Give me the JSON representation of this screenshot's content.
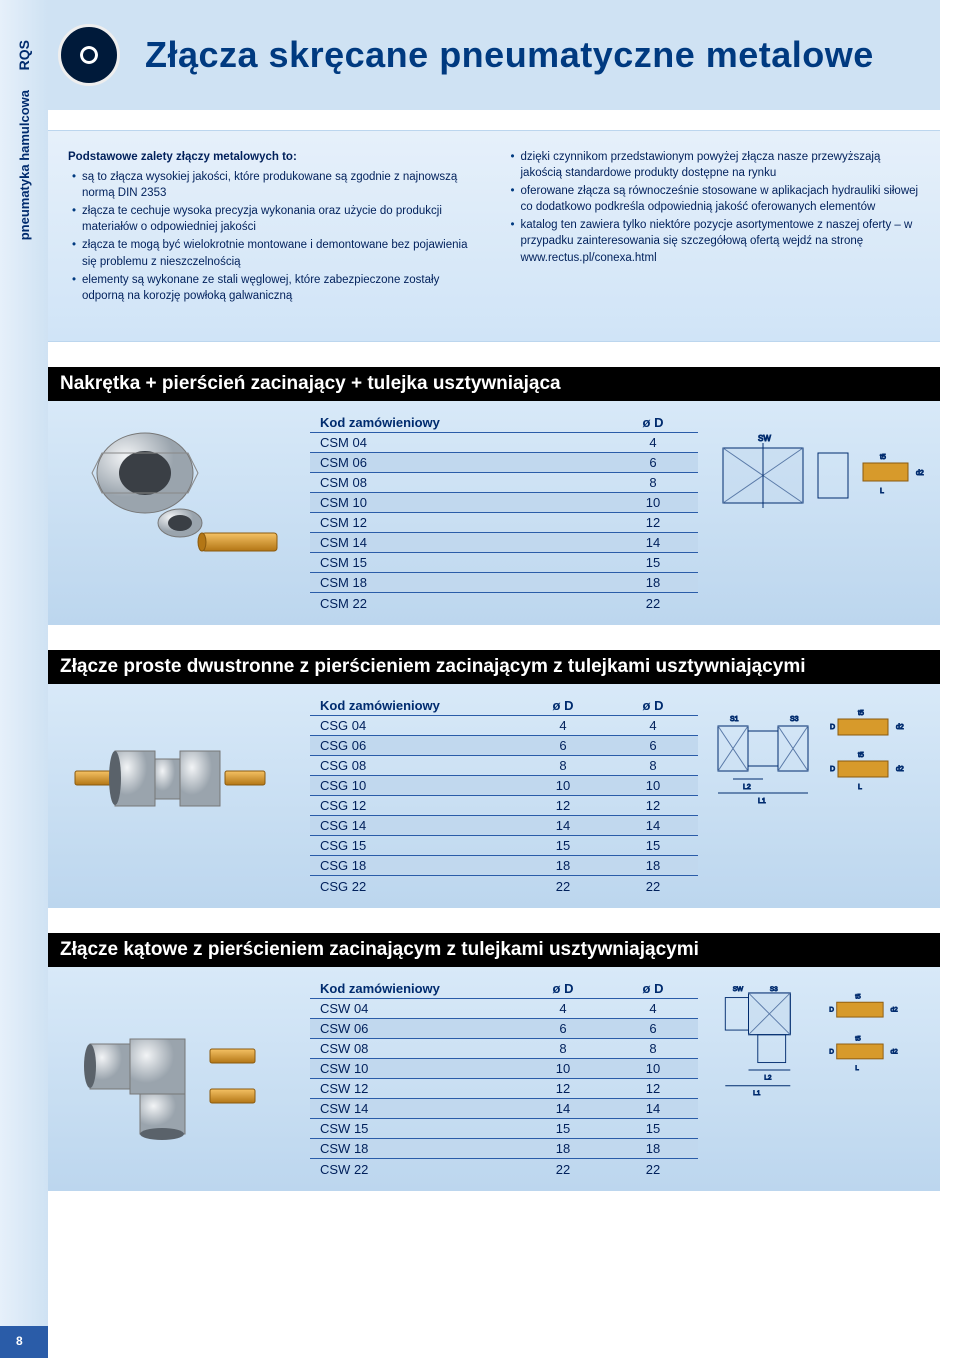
{
  "rail": {
    "code": "RQS",
    "category": "pneumatyka hamulcowa"
  },
  "header": {
    "title": "Złącza skręcane pneumatyczne metalowe"
  },
  "intro": {
    "left_title": "Podstawowe zalety złączy metalowych to:",
    "left_items": [
      "są to złącza wysokiej jakości, które produkowane są zgodnie z najnowszą normą DIN 2353",
      "złącza te cechuje wysoka precyzja wykonania oraz użycie do produkcji materiałów o odpowiedniej jakości",
      "złącza te mogą być wielokrotnie montowane i demontowane bez pojawienia się problemu z nieszczelnością",
      "elementy są wykonane ze stali węglowej, które zabezpieczone zostały odporną na korozję powłoką galwaniczną"
    ],
    "right_items": [
      "dzięki czynnikom przedstawionym powyżej złącza nasze przewyższają jakością standardowe produkty dostępne na rynku",
      "oferowane złącza są równocześnie stosowane w aplikacjach hydrauliki siłowej co dodatkowo podkreśla odpowiednią jakość oferowanych elementów",
      "katalog ten zawiera tylko niektóre pozycje asortymentowe z naszej oferty – w przypadku zainteresowania się szczegółową ofertą wejdź na stronę www.rectus.pl/conexa.html"
    ]
  },
  "sections": {
    "s1": {
      "title": "Nakrętka + pierścień zacinający + tulejka usztywniająca",
      "columns": [
        "Kod zamówieniowy",
        "ø D"
      ],
      "rows": [
        [
          "CSM 04",
          "4"
        ],
        [
          "CSM 06",
          "6"
        ],
        [
          "CSM 08",
          "8"
        ],
        [
          "CSM 10",
          "10"
        ],
        [
          "CSM 12",
          "12"
        ],
        [
          "CSM 14",
          "14"
        ],
        [
          "CSM 15",
          "15"
        ],
        [
          "CSM 18",
          "18"
        ],
        [
          "CSM 22",
          "22"
        ]
      ]
    },
    "s2": {
      "title": "Złącze proste dwustronne z pierścieniem zacinającym z tulejkami usztywniającymi",
      "columns": [
        "Kod zamówieniowy",
        "ø D",
        "ø D"
      ],
      "rows": [
        [
          "CSG 04",
          "4",
          "4"
        ],
        [
          "CSG 06",
          "6",
          "6"
        ],
        [
          "CSG 08",
          "8",
          "8"
        ],
        [
          "CSG 10",
          "10",
          "10"
        ],
        [
          "CSG 12",
          "12",
          "12"
        ],
        [
          "CSG 14",
          "14",
          "14"
        ],
        [
          "CSG 15",
          "15",
          "15"
        ],
        [
          "CSG 18",
          "18",
          "18"
        ],
        [
          "CSG 22",
          "22",
          "22"
        ]
      ]
    },
    "s3": {
      "title": "Złącze kątowe z pierścieniem zacinającym z tulejkami usztywniającymi",
      "columns": [
        "Kod zamówieniowy",
        "ø D",
        "ø D"
      ],
      "rows": [
        [
          "CSW 04",
          "4",
          "4"
        ],
        [
          "CSW 06",
          "6",
          "6"
        ],
        [
          "CSW 08",
          "8",
          "8"
        ],
        [
          "CSW 10",
          "10",
          "10"
        ],
        [
          "CSW 12",
          "12",
          "12"
        ],
        [
          "CSW 14",
          "14",
          "14"
        ],
        [
          "CSW 15",
          "15",
          "15"
        ],
        [
          "CSW 18",
          "18",
          "18"
        ],
        [
          "CSW 22",
          "22",
          "22"
        ]
      ]
    }
  },
  "colors": {
    "brand_blue": "#003a80",
    "text_blue": "#002b6e",
    "row_alt": "#c1d8ee",
    "panel_grad_from": "#d8e9f8",
    "panel_grad_to": "#bcd6ee",
    "brass": "#d79a2b",
    "steel": "#c4c9ce"
  },
  "page_number": "8"
}
